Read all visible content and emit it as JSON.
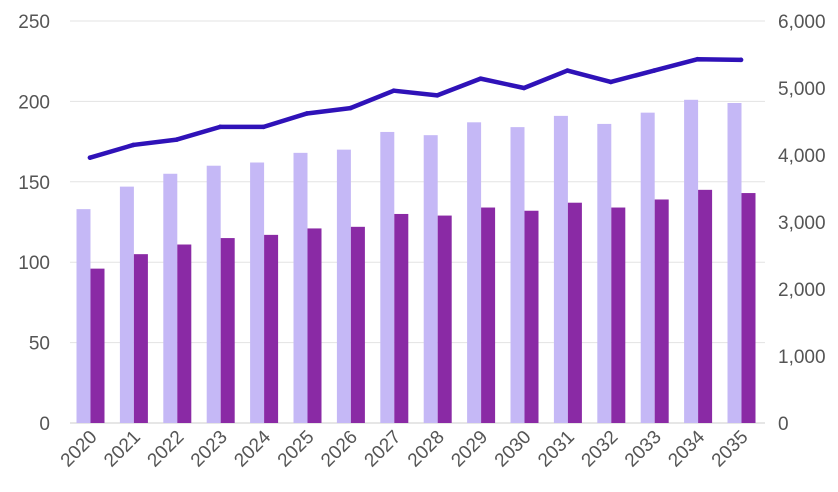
{
  "chart_data": {
    "type": "bar",
    "categories": [
      "2020",
      "2021",
      "2022",
      "2023",
      "2024",
      "2025",
      "2026",
      "2027",
      "2028",
      "2029",
      "2030",
      "2031",
      "2032",
      "2033",
      "2034",
      "2035"
    ],
    "series": [
      {
        "type": "bar",
        "axis": "left",
        "color": "#c5b8f6",
        "values": [
          133,
          147,
          155,
          160,
          162,
          168,
          170,
          181,
          179,
          187,
          184,
          191,
          186,
          193,
          201,
          199
        ]
      },
      {
        "type": "bar",
        "axis": "left",
        "color": "#8a2aa5",
        "values": [
          96,
          105,
          111,
          115,
          117,
          121,
          122,
          130,
          129,
          134,
          132,
          137,
          134,
          139,
          145,
          143
        ]
      },
      {
        "type": "line",
        "axis": "right",
        "color": "#2f12b8",
        "values": [
          3960,
          4150,
          4230,
          4420,
          4420,
          4620,
          4700,
          4960,
          4890,
          5140,
          5000,
          5260,
          5090,
          5260,
          5430,
          5420
        ]
      }
    ],
    "y_left": {
      "ylim": [
        0,
        250
      ],
      "ticks": [
        0,
        50,
        100,
        150,
        200,
        250
      ],
      "tick_labels": [
        "0",
        "50",
        "100",
        "150",
        "200",
        "250"
      ]
    },
    "y_right": {
      "ylim": [
        0,
        6000
      ],
      "ticks": [
        0,
        1000,
        2000,
        3000,
        4000,
        5000,
        6000
      ],
      "tick_labels": [
        "0",
        "1,000",
        "2,000",
        "3,000",
        "4,000",
        "5,000",
        "6,000"
      ]
    },
    "title": "",
    "xlabel": "",
    "ylabel": "",
    "grid": true,
    "legend": "none"
  }
}
